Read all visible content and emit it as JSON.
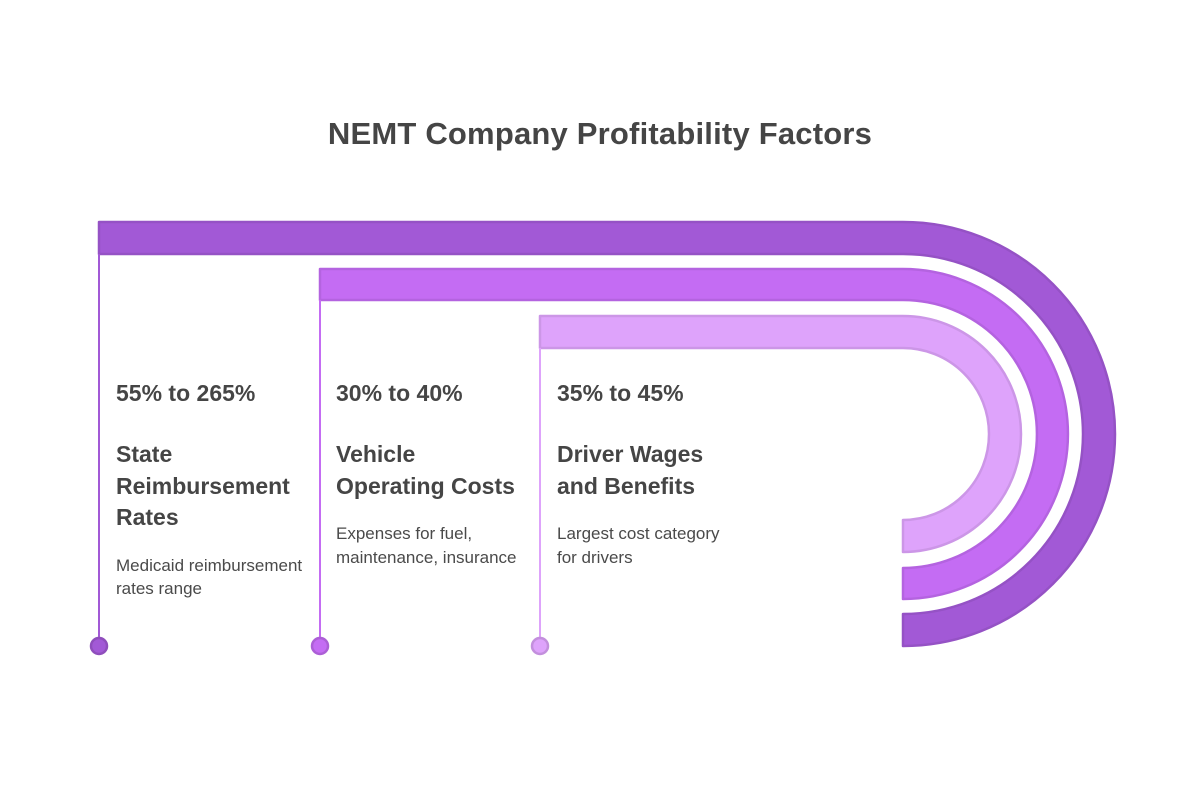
{
  "title": "NEMT Company Profitability Factors",
  "factors": [
    {
      "stat": "55% to 265%",
      "heading": "State Reimbursement Rates",
      "description": "Medicaid reimbursement rates range",
      "color": "#a259d6"
    },
    {
      "stat": "30% to 40%",
      "heading": "Vehicle Operating Costs",
      "description": "Expenses for fuel, maintenance, insurance",
      "color": "#c46cf3"
    },
    {
      "stat": "35% to 45%",
      "heading": "Driver Wages and Benefits",
      "description": "Largest cost category for drivers",
      "color": "#dea3fb"
    }
  ]
}
